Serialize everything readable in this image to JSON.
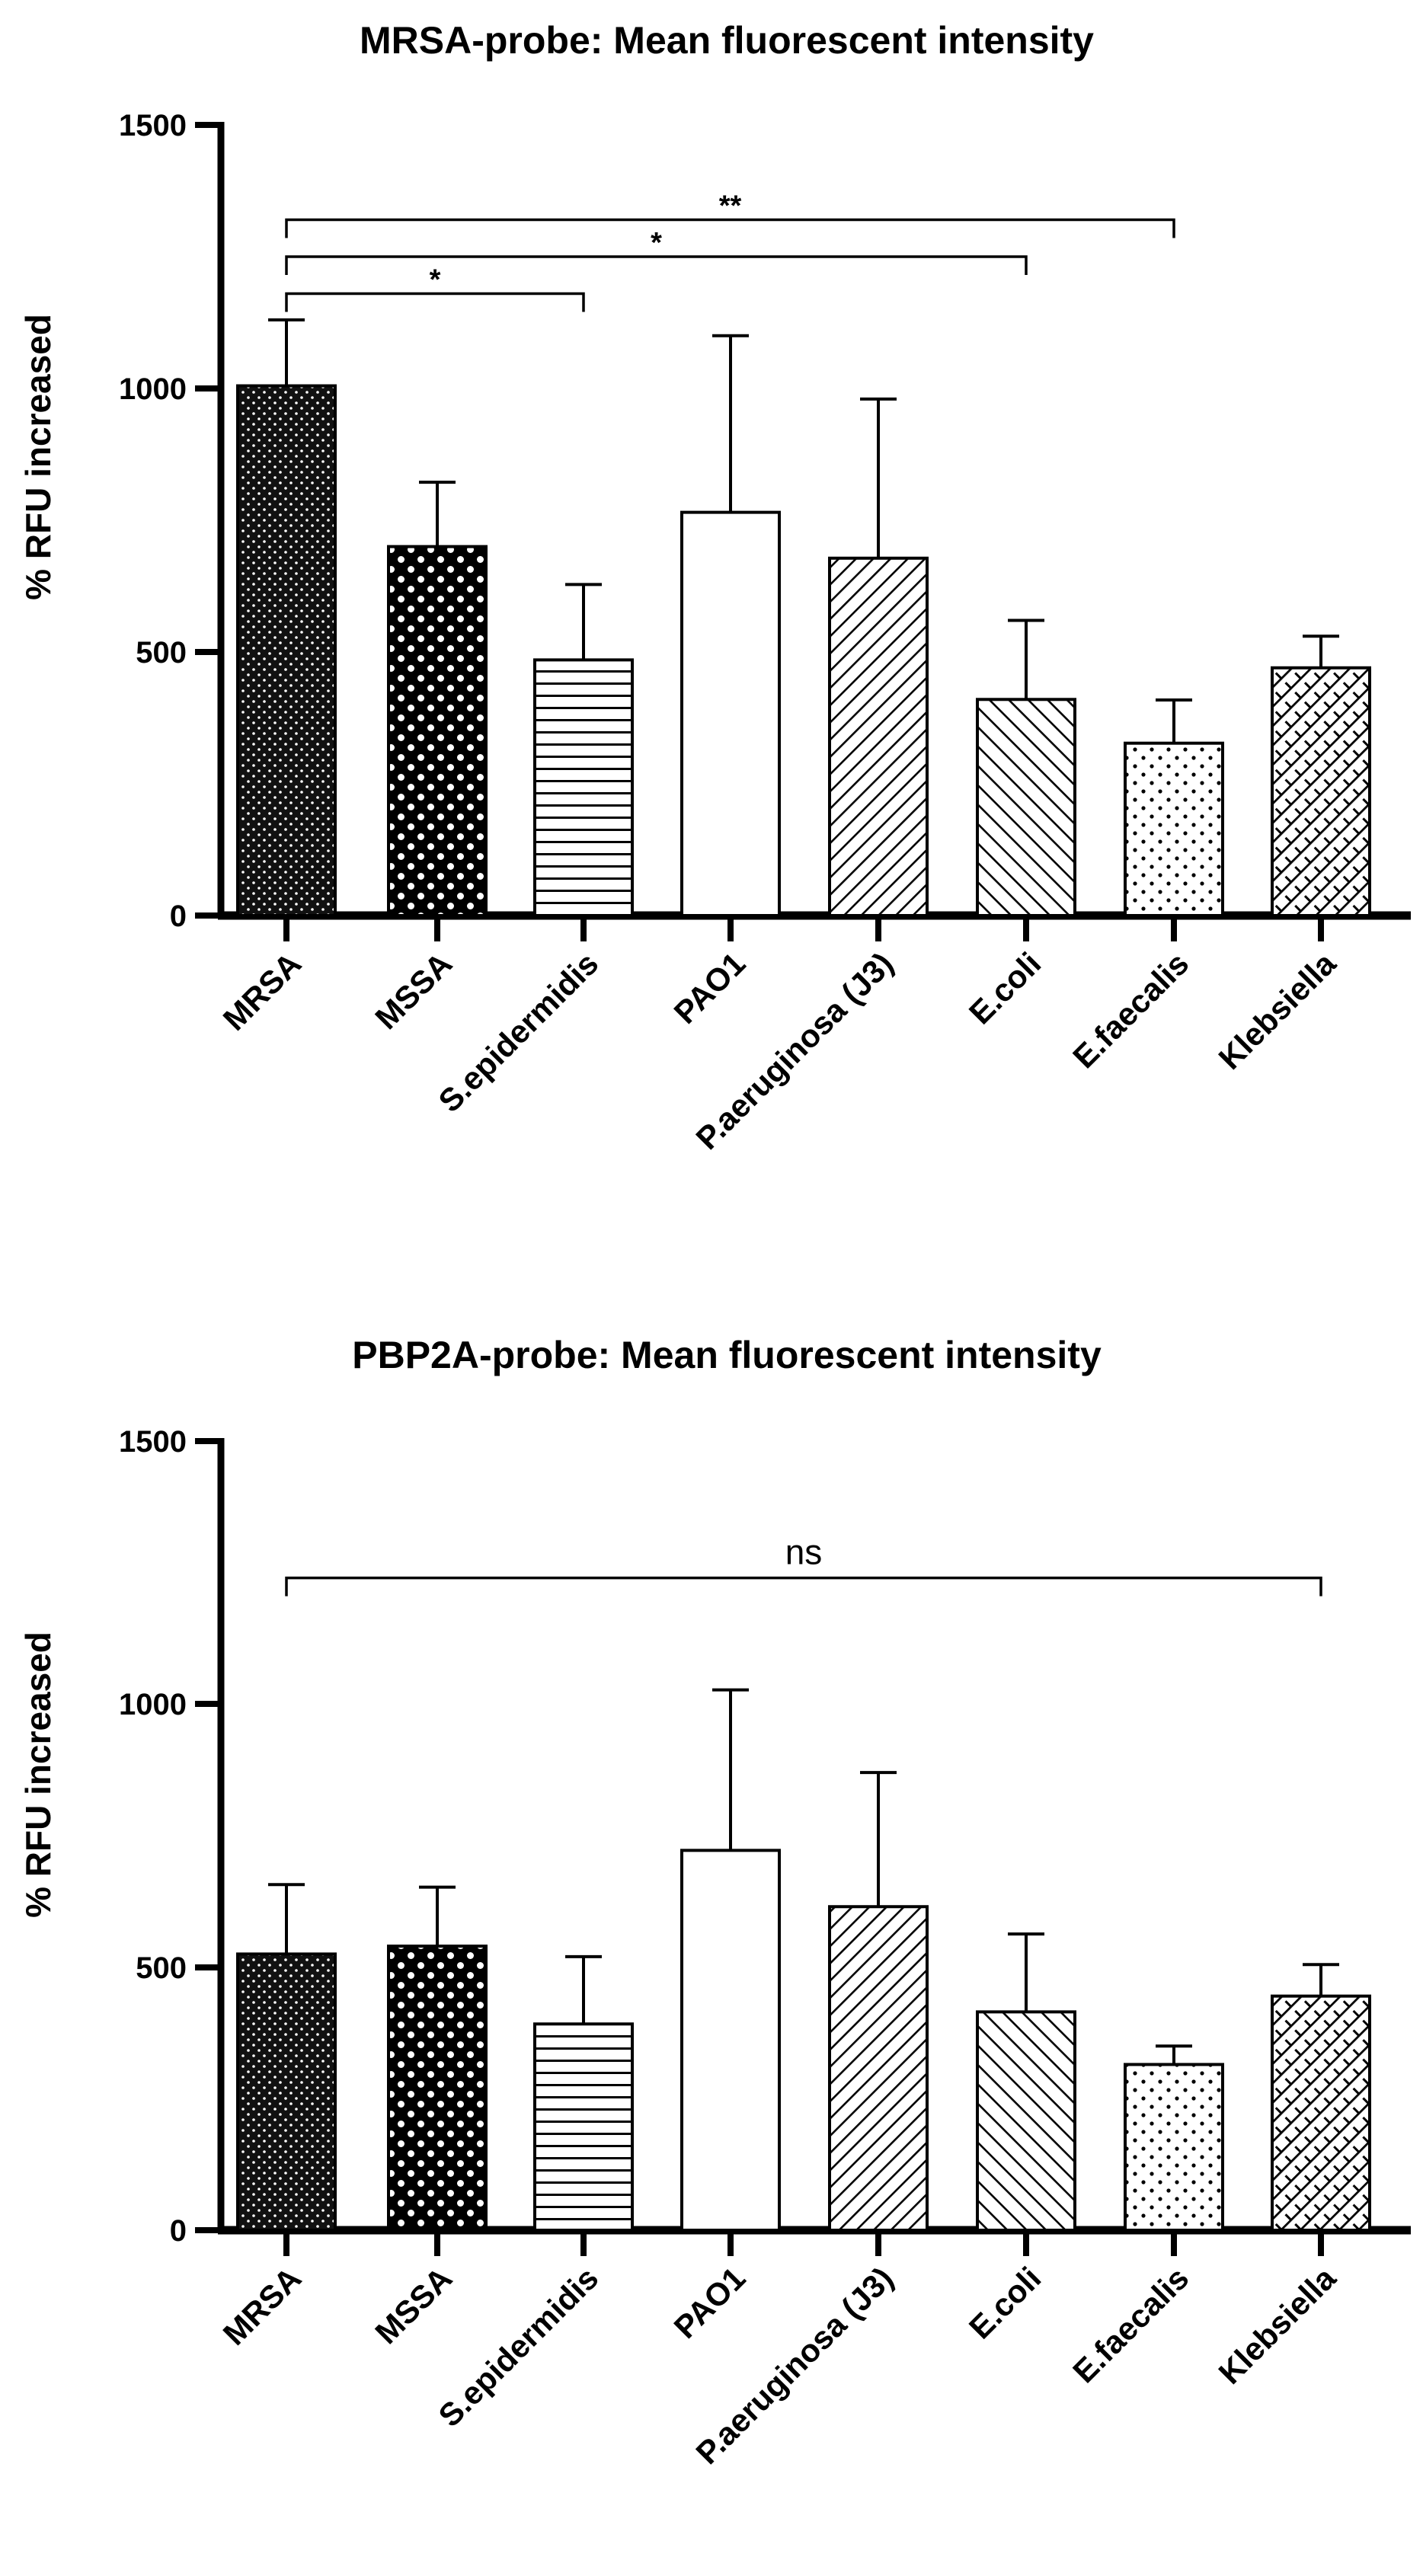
{
  "chart_data": [
    {
      "type": "bar",
      "title": "MRSA-probe: Mean fluorescent intensity",
      "xlabel": "",
      "ylabel": "% RFU increased",
      "ylim": [
        0,
        1500
      ],
      "yticks": [
        "0",
        "500",
        "1000",
        "1500"
      ],
      "categories": [
        "MRSA",
        "MSSA",
        "S.epidermidis",
        "PAO1",
        "P.aeruginosa (J3)",
        "E.coli",
        "E.faecalis",
        "Klebsiella"
      ],
      "values": [
        1005,
        700,
        485,
        765,
        678,
        410,
        327,
        470
      ],
      "errors": [
        125,
        122,
        143,
        335,
        302,
        150,
        82,
        60
      ],
      "patterns": [
        "dense-dots",
        "polka",
        "hlines",
        "none",
        "diag-right",
        "diag-left",
        "sparse-dots",
        "crosshatch-diag"
      ],
      "annotations": [
        {
          "from": 0,
          "to": 2,
          "y": 1180,
          "label": "*"
        },
        {
          "from": 0,
          "to": 5,
          "y": 1250,
          "label": "*"
        },
        {
          "from": 0,
          "to": 6,
          "y": 1320,
          "label": "**"
        }
      ]
    },
    {
      "type": "bar",
      "title": "PBP2A-probe: Mean fluorescent intensity",
      "xlabel": "",
      "ylabel": "% RFU increased",
      "ylim": [
        0,
        1500
      ],
      "yticks": [
        "0",
        "500",
        "1000",
        "1500"
      ],
      "categories": [
        "MRSA",
        "MSSA",
        "S.epidermidis",
        "PAO1",
        "P.aeruginosa (J3)",
        "E.coli",
        "E.faecalis",
        "Klebsiella"
      ],
      "values": [
        525,
        540,
        392,
        722,
        615,
        415,
        315,
        445
      ],
      "errors": [
        132,
        112,
        128,
        305,
        255,
        148,
        35,
        60
      ],
      "patterns": [
        "dense-dots",
        "polka",
        "hlines",
        "none",
        "diag-right",
        "diag-left",
        "sparse-dots",
        "crosshatch-diag"
      ],
      "annotations": [
        {
          "from": 0,
          "to": 7,
          "y": 1240,
          "label": "ns"
        }
      ]
    }
  ]
}
